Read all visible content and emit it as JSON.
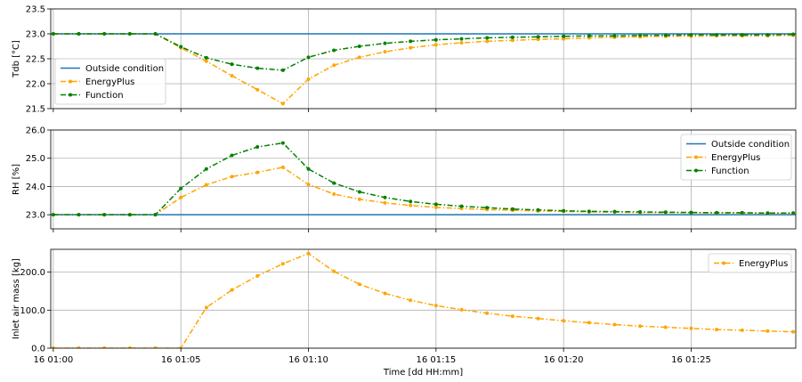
{
  "chart_data": [
    {
      "type": "line",
      "ylabel": "Tdb [°C]",
      "ylim": [
        21.5,
        23.5
      ],
      "yticks": [
        21.5,
        22.0,
        22.5,
        23.0,
        23.5
      ],
      "yticklabels": [
        "21.5",
        "22.0",
        "22.5",
        "23.0",
        "23.5"
      ],
      "show_xticklabels": false,
      "legend_position": "lower-left",
      "grid": true,
      "series": [
        {
          "name": "Outside condition",
          "color": "#1f77b4",
          "style": "solid",
          "marker": "none",
          "x": [
            0,
            29
          ],
          "y": [
            23.0,
            23.0
          ]
        },
        {
          "name": "EnergyPlus",
          "color": "#ffa500",
          "style": "dashdot",
          "marker": "circle",
          "x": [
            0,
            1,
            2,
            3,
            4,
            5,
            6,
            7,
            8,
            9,
            10,
            11,
            12,
            13,
            14,
            15,
            16,
            17,
            18,
            19,
            20,
            21,
            22,
            23,
            24,
            25,
            26,
            27,
            28,
            29
          ],
          "y": [
            23.0,
            23.0,
            23.0,
            23.0,
            23.0,
            22.72,
            22.45,
            22.16,
            21.88,
            21.6,
            22.09,
            22.37,
            22.53,
            22.64,
            22.72,
            22.78,
            22.82,
            22.85,
            22.87,
            22.89,
            22.9,
            22.92,
            22.93,
            22.94,
            22.95,
            22.95,
            22.96,
            22.96,
            22.96,
            22.97
          ]
        },
        {
          "name": "Function",
          "color": "#008000",
          "style": "dashdot",
          "marker": "circle",
          "x": [
            0,
            1,
            2,
            3,
            4,
            5,
            6,
            7,
            8,
            9,
            10,
            11,
            12,
            13,
            14,
            15,
            16,
            17,
            18,
            19,
            20,
            21,
            22,
            23,
            24,
            25,
            26,
            27,
            28,
            29
          ],
          "y": [
            23.0,
            23.0,
            23.0,
            23.0,
            23.0,
            22.74,
            22.52,
            22.39,
            22.31,
            22.27,
            22.53,
            22.67,
            22.75,
            22.81,
            22.85,
            22.88,
            22.9,
            22.92,
            22.93,
            22.94,
            22.95,
            22.96,
            22.96,
            22.97,
            22.97,
            22.98,
            22.98,
            22.98,
            22.98,
            22.99
          ]
        }
      ]
    },
    {
      "type": "line",
      "ylabel": "RH [%]",
      "ylim": [
        22.5,
        26.0
      ],
      "yticks": [
        23.0,
        24.0,
        25.0,
        26.0
      ],
      "yticklabels": [
        "23.0",
        "24.0",
        "25.0",
        "26.0"
      ],
      "show_xticklabels": false,
      "legend_position": "upper-right",
      "grid": true,
      "series": [
        {
          "name": "Outside condition",
          "color": "#1f77b4",
          "style": "solid",
          "marker": "none",
          "x": [
            0,
            29
          ],
          "y": [
            23.0,
            23.0
          ]
        },
        {
          "name": "EnergyPlus",
          "color": "#ffa500",
          "style": "dashdot",
          "marker": "circle",
          "x": [
            0,
            1,
            2,
            3,
            4,
            5,
            6,
            7,
            8,
            9,
            10,
            11,
            12,
            13,
            14,
            15,
            16,
            17,
            18,
            19,
            20,
            21,
            22,
            23,
            24,
            25,
            26,
            27,
            28,
            29
          ],
          "y": [
            23.0,
            23.0,
            23.0,
            23.0,
            23.0,
            23.61,
            24.06,
            24.35,
            24.5,
            24.68,
            24.07,
            23.73,
            23.55,
            23.42,
            23.33,
            23.26,
            23.22,
            23.18,
            23.16,
            23.13,
            23.12,
            23.1,
            23.09,
            23.08,
            23.07,
            23.07,
            23.06,
            23.06,
            23.05,
            23.05
          ]
        },
        {
          "name": "Function",
          "color": "#008000",
          "style": "dashdot",
          "marker": "circle",
          "x": [
            0,
            1,
            2,
            3,
            4,
            5,
            6,
            7,
            8,
            9,
            10,
            11,
            12,
            13,
            14,
            15,
            16,
            17,
            18,
            19,
            20,
            21,
            22,
            23,
            24,
            25,
            26,
            27,
            28,
            29
          ],
          "y": [
            23.0,
            23.0,
            23.0,
            23.0,
            23.0,
            23.93,
            24.62,
            25.1,
            25.4,
            25.54,
            24.62,
            24.12,
            23.81,
            23.61,
            23.47,
            23.37,
            23.3,
            23.25,
            23.2,
            23.17,
            23.14,
            23.12,
            23.11,
            23.1,
            23.09,
            23.08,
            23.07,
            23.07,
            23.06,
            23.06
          ]
        }
      ]
    },
    {
      "type": "line",
      "ylabel": "Inlet air mass [kg]",
      "xlabel": "Time [dd HH:mm]",
      "ylim": [
        0,
        260
      ],
      "yticks": [
        0,
        100,
        200
      ],
      "yticklabels": [
        "0.0",
        "100.0",
        "200.0"
      ],
      "xlim": [
        -0.1,
        29.1
      ],
      "xticks": [
        0,
        5,
        10,
        15,
        20,
        25
      ],
      "xticklabels": [
        "16 01:00",
        "16 01:05",
        "16 01:10",
        "16 01:15",
        "16 01:20",
        "16 01:25"
      ],
      "show_xticklabels": true,
      "legend_position": "upper-right",
      "grid": true,
      "series": [
        {
          "name": "EnergyPlus",
          "color": "#ffa500",
          "style": "dashdot",
          "marker": "circle",
          "x": [
            0,
            1,
            2,
            3,
            4,
            5,
            6,
            7,
            8,
            9,
            10,
            11,
            12,
            13,
            14,
            15,
            16,
            17,
            18,
            19,
            20,
            21,
            22,
            23,
            24,
            25,
            26,
            27,
            28,
            29
          ],
          "y": [
            0,
            0,
            0,
            0,
            0,
            0,
            107,
            153,
            190,
            222,
            249,
            202,
            168,
            144,
            126,
            112,
            101,
            92,
            84,
            78,
            72,
            67,
            62,
            58,
            55,
            52,
            49,
            47,
            45,
            43
          ]
        }
      ]
    }
  ]
}
